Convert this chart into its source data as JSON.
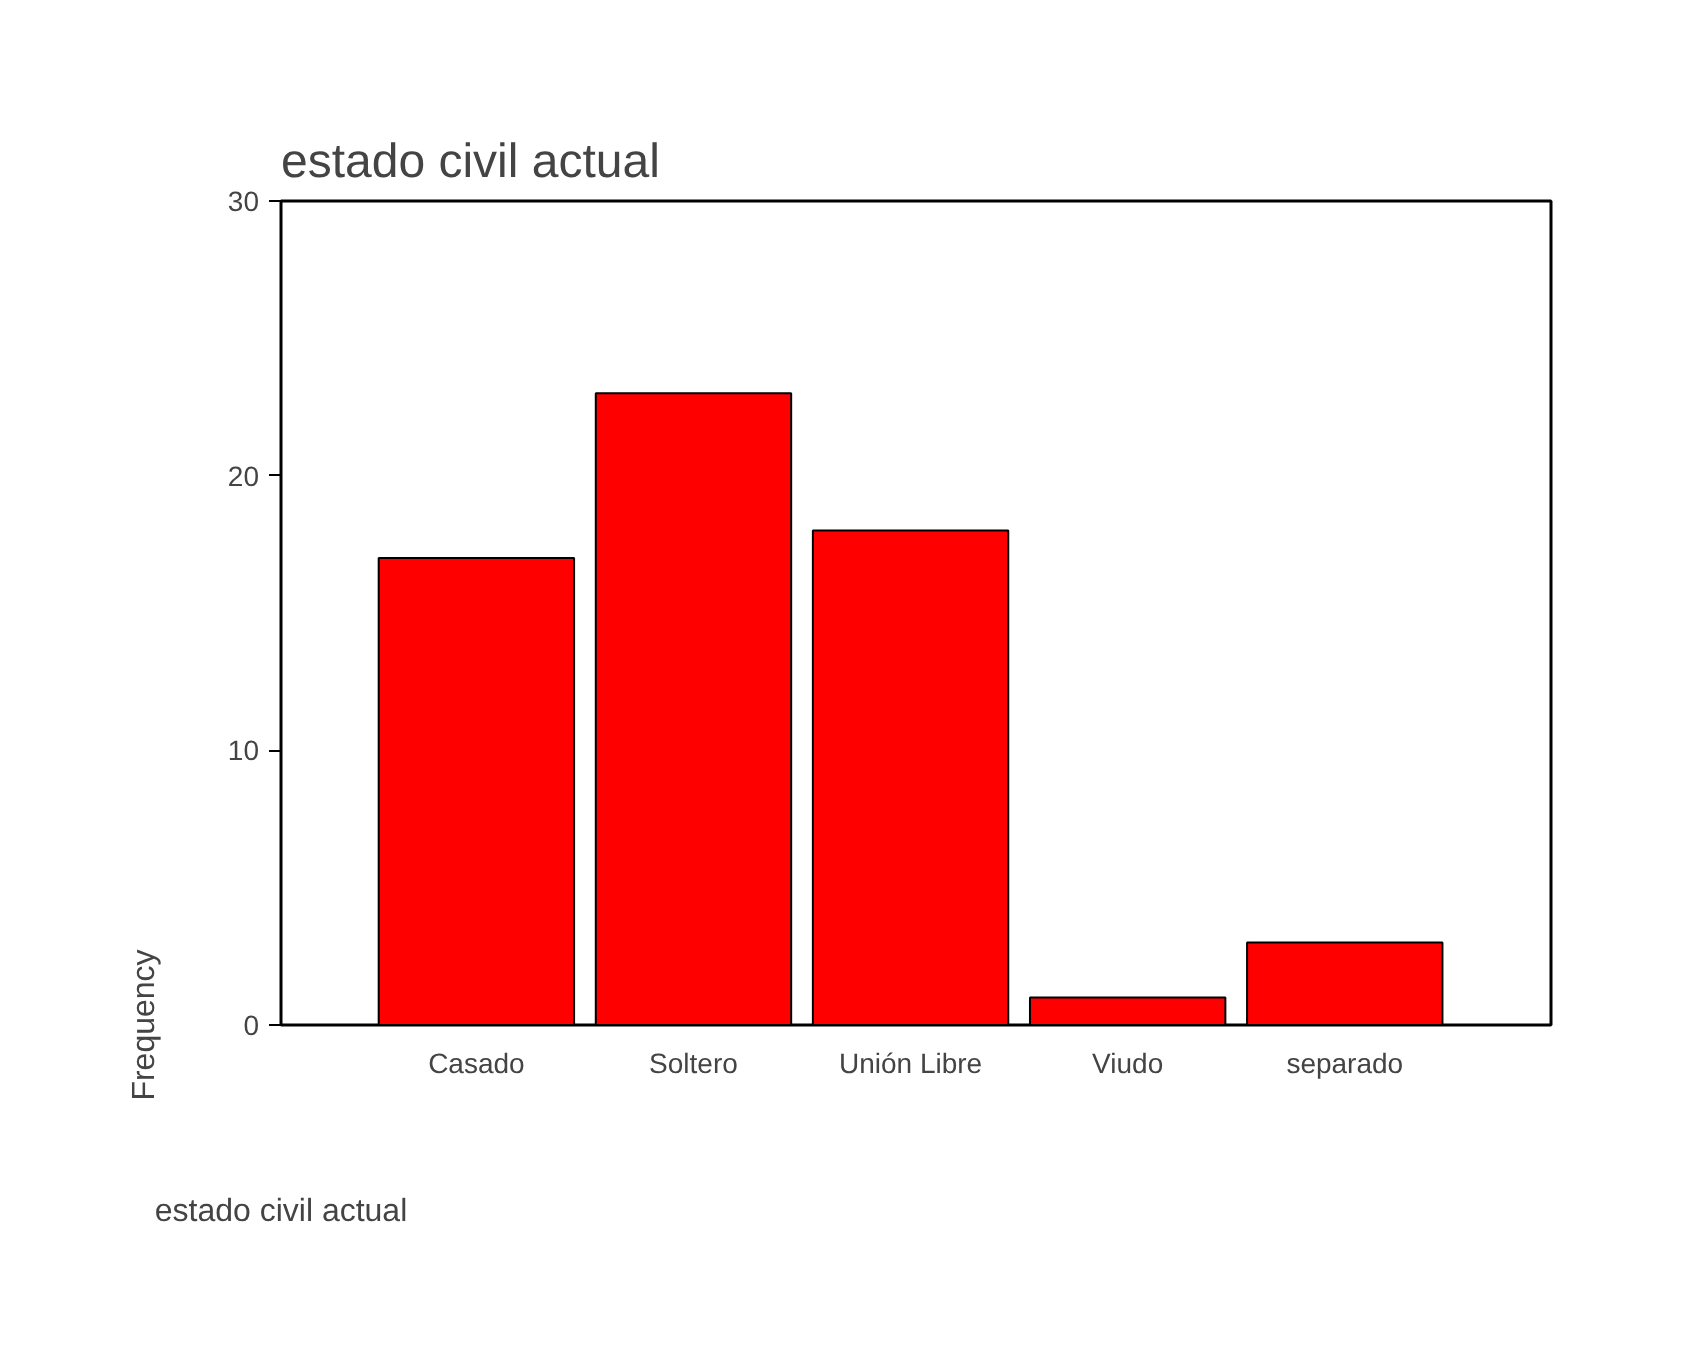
{
  "chart_data": {
    "type": "bar",
    "title": "estado civil actual",
    "xlabel": "estado civil actual",
    "ylabel": "Frequency",
    "categories": [
      "Casado",
      "Soltero",
      "Unión Libre",
      "Viudo",
      "separado"
    ],
    "values": [
      17,
      23,
      18,
      1,
      3
    ],
    "color": "#ff0000",
    "ylim": [
      0,
      30
    ],
    "yticks": [
      0,
      10,
      20,
      30
    ],
    "grid": false
  }
}
